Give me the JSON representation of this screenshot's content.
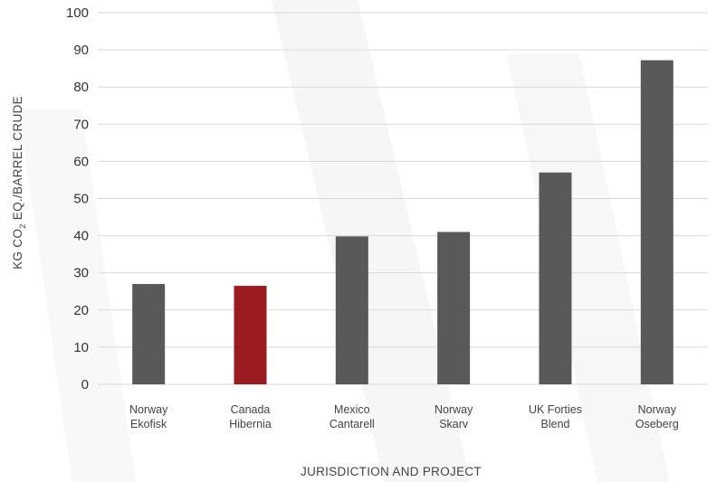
{
  "chart_data": {
    "type": "bar",
    "title": "",
    "xlabel": "JURISDICTION AND PROJECT",
    "ylabel": {
      "prefix": "KG CO",
      "subscript": "2",
      "suffix": " EQ./BARREL CRUDE"
    },
    "ylim": [
      0,
      100
    ],
    "yticks": [
      "0",
      "10",
      "20",
      "30",
      "40",
      "50",
      "60",
      "70",
      "80",
      "90",
      "100"
    ],
    "grid": true,
    "categories": [
      [
        "Norway",
        "Ekofisk"
      ],
      [
        "Canada",
        "Hibernia"
      ],
      [
        "Mexico",
        "Cantarell"
      ],
      [
        "Norway",
        "Skarv"
      ],
      [
        "UK Forties",
        "Blend"
      ],
      [
        "Norway",
        "Oseberg"
      ]
    ],
    "values": [
      27,
      26.5,
      39.8,
      41,
      57,
      87.2
    ],
    "colors": {
      "default": "#58595b",
      "highlight": "#9b1c20",
      "grid": "#d9d9d9"
    },
    "highlight_index": 1
  }
}
